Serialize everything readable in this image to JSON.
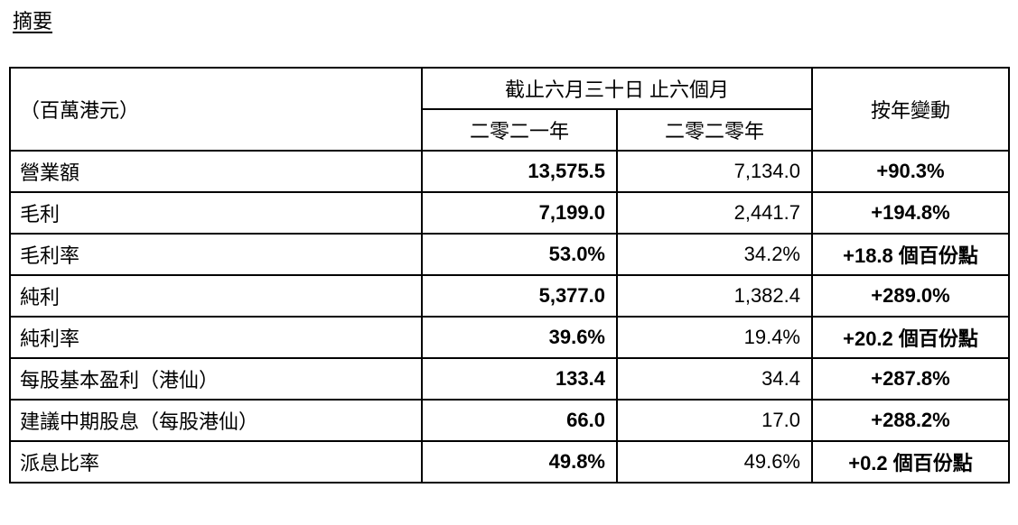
{
  "header": {
    "title": "摘要"
  },
  "table": {
    "unit_label": "（百萬港元）",
    "period": "截止六月三十日 止六個月",
    "years": [
      "二零二一年",
      "二零二零年"
    ],
    "change": "按年變動",
    "rows": [
      [
        "營業額",
        "13,575.5",
        "7,134.0",
        "+90.3%"
      ],
      [
        "毛利",
        "7,199.0",
        "2,441.7",
        "+194.8%"
      ],
      [
        "毛利率",
        "53.0%",
        "34.2%",
        "+18.8 個百份點"
      ],
      [
        "純利",
        "5,377.0",
        "1,382.4",
        "+289.0%"
      ],
      [
        "純利率",
        "39.6%",
        "19.4%",
        "+20.2 個百份點"
      ],
      [
        "每股基本盈利（港仙）",
        "133.4",
        "34.4",
        "+287.8%"
      ],
      [
        "建議中期股息（每股港仙）",
        "66.0",
        "17.0",
        "+288.2%"
      ],
      [
        "派息比率",
        "49.8%",
        "49.6%",
        "+0.2 個百份點"
      ]
    ]
  }
}
